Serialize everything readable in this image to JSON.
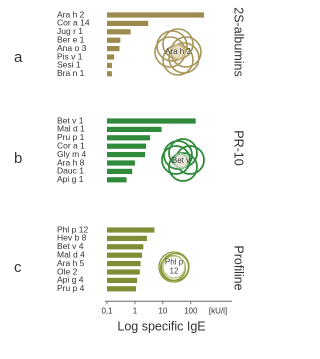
{
  "chart_data": [
    {
      "type": "bar",
      "orientation": "horizontal",
      "log_x": true,
      "letter": "a",
      "group_label": "2S-albumins",
      "icon_label": [
        "Ara h 2"
      ],
      "color": "#9c8a4e",
      "categories": [
        "Ara h 2",
        "Cor a 14",
        "Jug r 1",
        "Ber e 1",
        "Ana o 3",
        "Pis v 1",
        "Sesi 1",
        "Bra n 1"
      ],
      "values": [
        300,
        3,
        0.7,
        0.3,
        0.28,
        0.18,
        0.15,
        0.15
      ],
      "xlim": [
        0.1,
        3000
      ]
    },
    {
      "type": "bar",
      "orientation": "horizontal",
      "log_x": true,
      "letter": "b",
      "group_label": "PR-10",
      "icon_label": [
        "Bet v"
      ],
      "color": "#2f8a3c",
      "categories": [
        "Bet v 1",
        "Mal d 1",
        "Pru p 1",
        "Cor a 1",
        "Gly m 4",
        "Ara h 8",
        "Dauc 1",
        "Api g 1"
      ],
      "values": [
        150,
        9,
        3.5,
        2.5,
        2.3,
        1,
        0.8,
        0.5
      ],
      "xlim": [
        0.1,
        3000
      ]
    },
    {
      "type": "bar",
      "orientation": "horizontal",
      "log_x": true,
      "letter": "c",
      "group_label": "Profiline",
      "icon_label": [
        "Phl p",
        "12"
      ],
      "color": "#7f8f35",
      "categories": [
        "Phl p 12",
        "Hev b 8",
        "Bet v 4",
        "Mal d 4",
        "Ara h 5",
        "Ole 2",
        "Api g 4",
        "Pru p 4"
      ],
      "values": [
        5,
        2.7,
        2,
        1.8,
        1.6,
        1.5,
        1.2,
        1.1
      ],
      "xlim": [
        0.1,
        3000
      ],
      "xticks": [
        {
          "value": 0.1,
          "label": "0,1"
        },
        1,
        10,
        100
      ],
      "x_unit": "[kU/l]",
      "xlabel": "Log specific IgE"
    }
  ]
}
